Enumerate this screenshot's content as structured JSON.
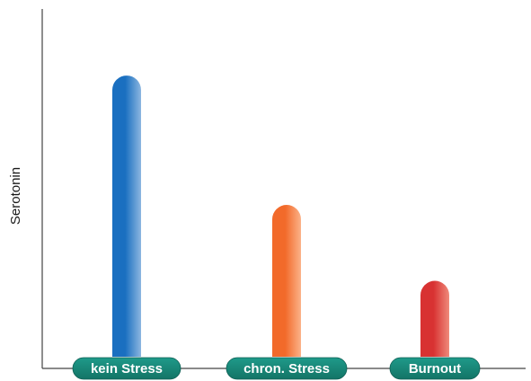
{
  "chart_data": {
    "type": "bar",
    "ylabel": "Serotonin",
    "xlabel": "",
    "categories": [
      "kein Stress",
      "chron. Stress",
      "Burnout"
    ],
    "values": [
      100,
      54,
      27
    ],
    "ylim": [
      0,
      116
    ],
    "grid": false,
    "colors": {
      "bars": [
        "#1a6fc0",
        "#f26a2a",
        "#d83232"
      ],
      "bars_light": [
        "#8cb6e0",
        "#fbb289",
        "#ef8a7a"
      ],
      "category_pill": "#1f9a8a",
      "category_pill_dark": "#137466",
      "axis": "#444444"
    }
  }
}
